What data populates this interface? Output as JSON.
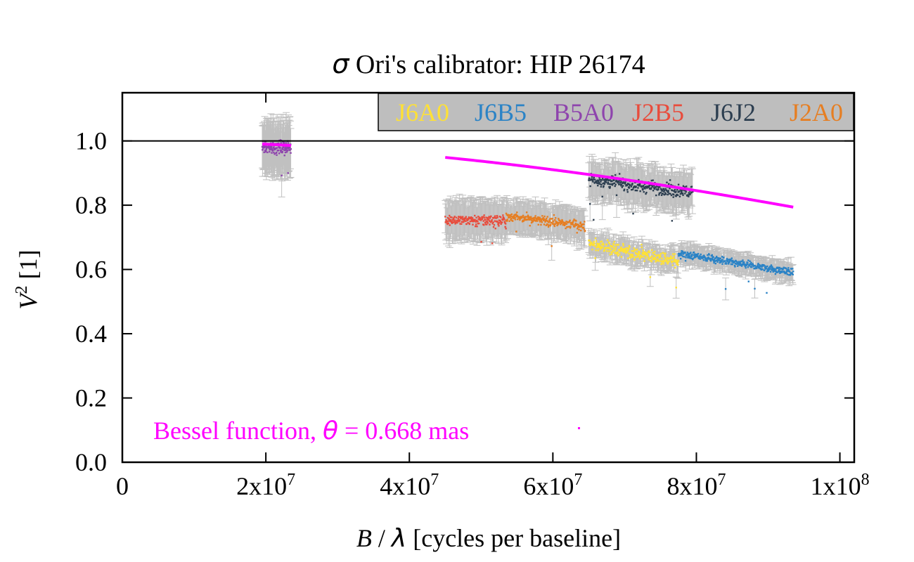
{
  "chart_data": {
    "type": "scatter",
    "title_symbol": "σ",
    "title_rest": " Ori's calibrator: HIP 26174",
    "xlabel_B": "B",
    "xlabel_slash": " / ",
    "xlabel_lambda": "λ",
    "xlabel_rest": " [cycles per baseline]",
    "ylabel_V": "V",
    "ylabel_exp": "2",
    "ylabel_rest": " [1]",
    "xlim": [
      0,
      102000000
    ],
    "ylim": [
      0,
      1.15
    ],
    "x_ticks": [
      {
        "value": 0,
        "base": "0",
        "exp": ""
      },
      {
        "value": 20000000,
        "base": "2x10",
        "exp": "7"
      },
      {
        "value": 40000000,
        "base": "4x10",
        "exp": "7"
      },
      {
        "value": 60000000,
        "base": "6x10",
        "exp": "7"
      },
      {
        "value": 80000000,
        "base": "8x10",
        "exp": "7"
      },
      {
        "value": 100000000,
        "base": "1x10",
        "exp": "8"
      }
    ],
    "y_ticks": [
      {
        "value": 0.0,
        "label": "0.0"
      },
      {
        "value": 0.2,
        "label": "0.2"
      },
      {
        "value": 0.4,
        "label": "0.4"
      },
      {
        "value": 0.6,
        "label": "0.6"
      },
      {
        "value": 0.8,
        "label": "0.8"
      },
      {
        "value": 1.0,
        "label": "1.0"
      }
    ],
    "reference_line_y": 1.0,
    "legend_position": "top-right",
    "legend_background": "#bebebe",
    "error_bar_color": "#c0c0c0",
    "series": [
      {
        "name": "J6A0",
        "color": "#ffe135",
        "x_range": [
          65000000,
          77500000
        ],
        "v2_start": 0.68,
        "v2_end": 0.625,
        "scatter": 0.02,
        "v2_err": 0.035
      },
      {
        "name": "J6B5",
        "color": "#2b83c6",
        "x_range": [
          77500000,
          93500000
        ],
        "v2_start": 0.65,
        "v2_end": 0.59,
        "scatter": 0.012,
        "v2_err": 0.03
      },
      {
        "name": "B5A0",
        "color": "#8e44ad",
        "x_range": [
          19500000,
          23500000
        ],
        "v2_start": 0.98,
        "v2_end": 0.98,
        "scatter": 0.02,
        "v2_err": 0.08
      },
      {
        "name": "J2B5",
        "color": "#e84c3c",
        "x_range": [
          45000000,
          53500000
        ],
        "v2_start": 0.755,
        "v2_end": 0.75,
        "scatter": 0.018,
        "v2_err": 0.06
      },
      {
        "name": "J6J2",
        "color": "#2c3e50",
        "x_range": [
          65000000,
          79500000
        ],
        "v2_start": 0.88,
        "v2_end": 0.84,
        "scatter": 0.02,
        "v2_err": 0.06
      },
      {
        "name": "J2A0",
        "color": "#e67e22",
        "x_range": [
          53500000,
          64500000
        ],
        "v2_start": 0.765,
        "v2_end": 0.735,
        "scatter": 0.015,
        "v2_err": 0.05
      }
    ],
    "model": {
      "type": "uniform-disk bessel",
      "label_prefix": "Bessel function, ",
      "label_theta": "θ",
      "label_suffix": " = 0.668 mas",
      "theta_mas": 0.668,
      "color": "#ff00ff",
      "segments_x": [
        [
          19500000,
          23500000
        ],
        [
          45000000,
          93500000
        ]
      ]
    }
  }
}
